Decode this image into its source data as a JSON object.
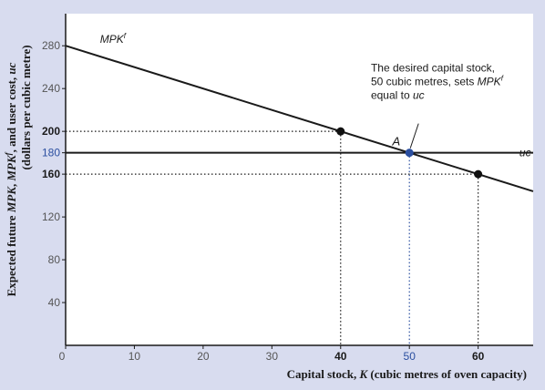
{
  "colors": {
    "background": "#d8dcef",
    "plot_bg": "#ffffff",
    "axis": "#1a1a1a",
    "line": "#1a1a1a",
    "blue": "#2b4fa0",
    "tick_text": "#555555"
  },
  "chart_data": {
    "type": "line",
    "xlabel_parts": [
      "Capital stock, ",
      "K",
      " (cubic metres of oven capacity)"
    ],
    "ylabel_line1_parts": [
      "Expected future ",
      "MPK",
      ", ",
      "MPK",
      "f",
      ", and user cost, ",
      "uc"
    ],
    "ylabel_line2": "(dollars per cubic metre)",
    "xlim": [
      0,
      68
    ],
    "ylim": [
      0,
      310
    ],
    "x_ticks": [
      {
        "value": 0,
        "label": "0",
        "style": "plain"
      },
      {
        "value": 10,
        "label": "10",
        "style": "plain"
      },
      {
        "value": 20,
        "label": "20",
        "style": "plain"
      },
      {
        "value": 30,
        "label": "30",
        "style": "plain"
      },
      {
        "value": 40,
        "label": "40",
        "style": "bold"
      },
      {
        "value": 50,
        "label": "50",
        "style": "blue"
      },
      {
        "value": 60,
        "label": "60",
        "style": "bold"
      }
    ],
    "y_ticks": [
      {
        "value": 40,
        "label": "40",
        "style": "plain"
      },
      {
        "value": 80,
        "label": "80",
        "style": "plain"
      },
      {
        "value": 120,
        "label": "120",
        "style": "plain"
      },
      {
        "value": 160,
        "label": "160",
        "style": "bold"
      },
      {
        "value": 180,
        "label": "180",
        "style": "blue"
      },
      {
        "value": 200,
        "label": "200",
        "style": "bold"
      },
      {
        "value": 240,
        "label": "240",
        "style": "plain"
      },
      {
        "value": 280,
        "label": "280",
        "style": "plain"
      }
    ],
    "series": [
      {
        "name_parts": [
          "MPK",
          "f"
        ],
        "x": [
          0,
          68
        ],
        "y": [
          280,
          144
        ],
        "label_at": [
          5,
          286
        ]
      },
      {
        "name_parts": [
          "uc"
        ],
        "x": [
          0,
          68
        ],
        "y": [
          180,
          180
        ],
        "label_at": [
          66,
          180
        ]
      }
    ],
    "points": [
      {
        "x": 40,
        "y": 200,
        "color": "black"
      },
      {
        "x": 50,
        "y": 180,
        "color": "blue"
      },
      {
        "x": 60,
        "y": 160,
        "color": "black"
      }
    ],
    "guides": [
      {
        "x": 40,
        "y": 200,
        "color": "black"
      },
      {
        "x": 50,
        "y": 180,
        "color": "blue"
      },
      {
        "x": 60,
        "y": 160,
        "color": "black"
      }
    ],
    "point_label": {
      "text": "A",
      "x": 50,
      "y": 180
    },
    "annotation": {
      "line1": "The desired capital stock,",
      "line2_parts": [
        "50 cubic metres, sets ",
        "MPK",
        "f"
      ],
      "line3_parts": [
        "equal to ",
        "uc"
      ]
    }
  }
}
